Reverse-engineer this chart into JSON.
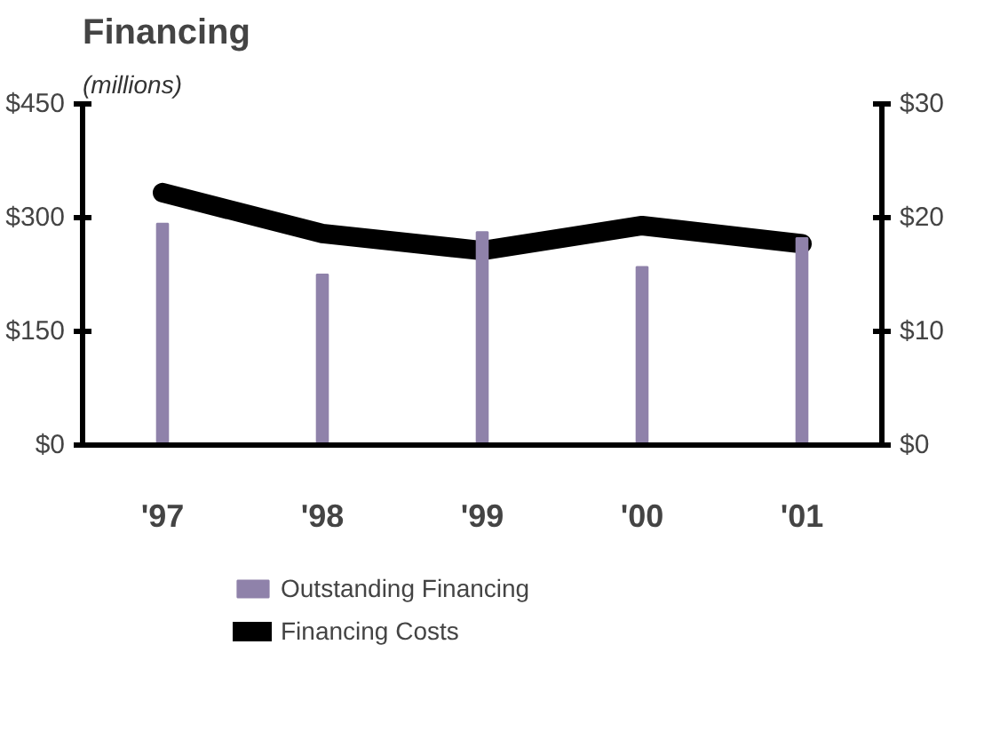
{
  "chart_data": {
    "type": "bar",
    "title": "Financing",
    "subtitle": "(millions)",
    "categories": [
      "'97",
      "'98",
      "'99",
      "'00",
      "'01"
    ],
    "series": [
      {
        "name": "Outstanding Financing",
        "color": "#8f82aa",
        "values": [
          292,
          225,
          281,
          235,
          273
        ]
      },
      {
        "name": "Financing Costs",
        "type": "line",
        "axis": "y2",
        "color": "#000000",
        "values": [
          22.2,
          18.6,
          17.1,
          19.3,
          17.7
        ]
      }
    ],
    "ylim": [
      0,
      450
    ],
    "yticks": [
      {
        "value": 0,
        "label": "$0"
      },
      {
        "value": 150,
        "label": "$150"
      },
      {
        "value": 300,
        "label": "$300"
      },
      {
        "value": 450,
        "label": "$450"
      }
    ],
    "y2lim": [
      0,
      30
    ],
    "y2ticks": [
      {
        "value": 0,
        "label": "$0"
      },
      {
        "value": 10,
        "label": "$10"
      },
      {
        "value": 20,
        "label": "$20"
      },
      {
        "value": 30,
        "label": "$30"
      }
    ],
    "grid": false,
    "legend": "bottom left"
  }
}
